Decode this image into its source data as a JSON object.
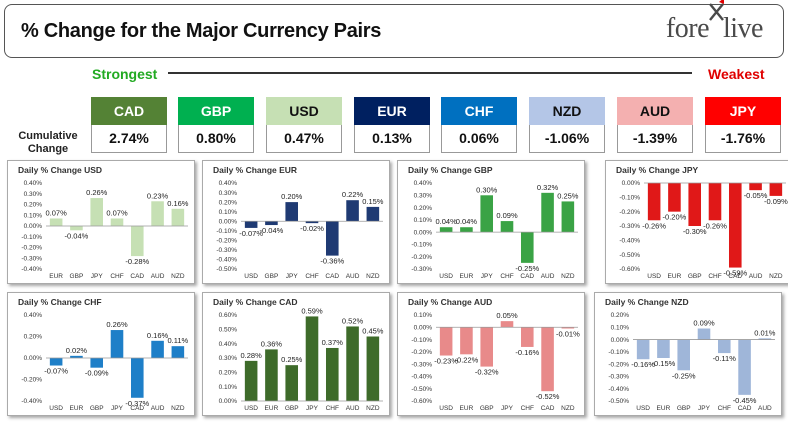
{
  "header": {
    "title": "% Change for the Major Currency Pairs",
    "logo_pre": "fore",
    "logo_post": "live"
  },
  "scale": {
    "strongest": "Strongest",
    "weakest": "Weakest"
  },
  "cumulative_label": "Cumulative Change",
  "summary": [
    {
      "ccy": "CAD",
      "value": "2.74%",
      "color": "#548235",
      "text": "#ffffff"
    },
    {
      "ccy": "GBP",
      "value": "0.80%",
      "color": "#00b050",
      "text": "#ffffff"
    },
    {
      "ccy": "USD",
      "value": "0.47%",
      "color": "#c6e0b4",
      "text": "#111111"
    },
    {
      "ccy": "EUR",
      "value": "0.13%",
      "color": "#002060",
      "text": "#ffffff"
    },
    {
      "ccy": "CHF",
      "value": "0.06%",
      "color": "#0070c0",
      "text": "#ffffff"
    },
    {
      "ccy": "NZD",
      "value": "-1.06%",
      "color": "#b4c6e7",
      "text": "#111111"
    },
    {
      "ccy": "AUD",
      "value": "-1.39%",
      "color": "#f4b0b0",
      "text": "#111111"
    },
    {
      "ccy": "JPY",
      "value": "-1.76%",
      "color": "#ff0000",
      "text": "#ffffff"
    }
  ],
  "chart_data": [
    {
      "type": "bar",
      "title": "Daily % Change USD",
      "color": "#c6e0b4",
      "categories": [
        "EUR",
        "GBP",
        "JPY",
        "CHF",
        "CAD",
        "AUD",
        "NZD"
      ],
      "values": [
        0.07,
        -0.04,
        0.26,
        0.07,
        -0.28,
        0.23,
        0.16
      ],
      "labels": [
        "0.07%",
        "-0.04%",
        "0.26%",
        "0.07%",
        "-0.28%",
        "0.23%",
        "0.16%"
      ],
      "ylim": [
        -0.4,
        0.4
      ],
      "ticks": [
        0.4,
        0.3,
        0.2,
        0.1,
        0.0,
        -0.1,
        -0.2,
        -0.3,
        -0.4
      ],
      "tick_labels": [
        "0.40%",
        "0.30%",
        "0.20%",
        "0.10%",
        "0.00%",
        "-0.10%",
        "-0.20%",
        "-0.30%",
        "-0.40%"
      ]
    },
    {
      "type": "bar",
      "title": "Daily % Change EUR",
      "color": "#1f3a73",
      "categories": [
        "USD",
        "GBP",
        "JPY",
        "CHF",
        "CAD",
        "AUD",
        "NZD"
      ],
      "values": [
        -0.07,
        -0.04,
        0.2,
        -0.02,
        -0.36,
        0.22,
        0.15
      ],
      "labels": [
        "-0.07%",
        "-0.04%",
        "0.20%",
        "-0.02%",
        "-0.36%",
        "0.22%",
        "0.15%"
      ],
      "ylim": [
        -0.5,
        0.4
      ],
      "ticks": [
        0.4,
        0.3,
        0.2,
        0.1,
        0.0,
        -0.1,
        -0.2,
        -0.3,
        -0.4,
        -0.5
      ],
      "tick_labels": [
        "0.40%",
        "0.30%",
        "0.20%",
        "0.10%",
        "0.00%",
        "-0.10%",
        "-0.20%",
        "-0.30%",
        "-0.40%",
        "-0.50%"
      ]
    },
    {
      "type": "bar",
      "title": "Daily % Change GBP",
      "color": "#3aa345",
      "categories": [
        "USD",
        "EUR",
        "JPY",
        "CHF",
        "CAD",
        "AUD",
        "NZD"
      ],
      "values": [
        0.04,
        0.04,
        0.3,
        0.09,
        -0.25,
        0.32,
        0.25
      ],
      "labels": [
        "0.04%",
        "0.04%",
        "0.30%",
        "0.09%",
        "-0.25%",
        "0.32%",
        "0.25%"
      ],
      "ylim": [
        -0.3,
        0.4
      ],
      "ticks": [
        0.4,
        0.3,
        0.2,
        0.1,
        0.0,
        -0.1,
        -0.2,
        -0.3
      ],
      "tick_labels": [
        "0.40%",
        "0.30%",
        "0.20%",
        "0.10%",
        "0.00%",
        "-0.10%",
        "-0.20%",
        "-0.30%"
      ]
    },
    {
      "type": "bar",
      "title": "Daily % Change JPY",
      "color": "#e01818",
      "categories": [
        "USD",
        "EUR",
        "GBP",
        "CHF",
        "CAD",
        "AUD",
        "NZD"
      ],
      "values": [
        -0.26,
        -0.2,
        -0.3,
        -0.26,
        -0.59,
        -0.05,
        -0.09
      ],
      "labels": [
        "-0.26%",
        "-0.20%",
        "-0.30%",
        "-0.26%",
        "-0.59%",
        "-0.05%",
        "-0.09%"
      ],
      "ylim": [
        -0.6,
        0.0
      ],
      "ticks": [
        0.0,
        -0.1,
        -0.2,
        -0.3,
        -0.4,
        -0.5,
        -0.6
      ],
      "tick_labels": [
        "0.00%",
        "-0.10%",
        "-0.20%",
        "-0.30%",
        "-0.40%",
        "-0.50%",
        "-0.60%"
      ]
    },
    {
      "type": "bar",
      "title": "Daily % Change CHF",
      "color": "#1e7fc8",
      "categories": [
        "USD",
        "EUR",
        "GBP",
        "JPY",
        "CAD",
        "AUD",
        "NZD"
      ],
      "values": [
        -0.07,
        0.02,
        -0.09,
        0.26,
        -0.37,
        0.16,
        0.11
      ],
      "labels": [
        "-0.07%",
        "0.02%",
        "-0.09%",
        "0.26%",
        "-0.37%",
        "0.16%",
        "0.11%"
      ],
      "ylim": [
        -0.4,
        0.4
      ],
      "ticks": [
        0.4,
        0.2,
        0.0,
        -0.2,
        -0.4
      ],
      "tick_labels": [
        "0.40%",
        "0.20%",
        "0.00%",
        "-0.20%",
        "-0.40%"
      ]
    },
    {
      "type": "bar",
      "title": "Daily % Change CAD",
      "color": "#3e6b2a",
      "categories": [
        "USD",
        "EUR",
        "GBP",
        "JPY",
        "CHF",
        "AUD",
        "NZD"
      ],
      "values": [
        0.28,
        0.36,
        0.25,
        0.59,
        0.37,
        0.52,
        0.45
      ],
      "labels": [
        "0.28%",
        "0.36%",
        "0.25%",
        "0.59%",
        "0.37%",
        "0.52%",
        "0.45%"
      ],
      "ylim": [
        0.0,
        0.6
      ],
      "ticks": [
        0.6,
        0.5,
        0.4,
        0.3,
        0.2,
        0.1,
        0.0
      ],
      "tick_labels": [
        "0.60%",
        "0.50%",
        "0.40%",
        "0.30%",
        "0.20%",
        "0.10%",
        "0.00%"
      ]
    },
    {
      "type": "bar",
      "title": "Daily % Change AUD",
      "color": "#e88a8a",
      "categories": [
        "USD",
        "EUR",
        "GBP",
        "JPY",
        "CHF",
        "CAD",
        "NZD"
      ],
      "values": [
        -0.23,
        -0.22,
        -0.32,
        0.05,
        -0.16,
        -0.52,
        -0.01
      ],
      "labels": [
        "-0.23%",
        "-0.22%",
        "-0.32%",
        "0.05%",
        "-0.16%",
        "-0.52%",
        "-0.01%"
      ],
      "ylim": [
        -0.6,
        0.1
      ],
      "ticks": [
        0.1,
        0.0,
        -0.1,
        -0.2,
        -0.3,
        -0.4,
        -0.5,
        -0.6
      ],
      "tick_labels": [
        "0.10%",
        "0.00%",
        "-0.10%",
        "-0.20%",
        "-0.30%",
        "-0.40%",
        "-0.50%",
        "-0.60%"
      ]
    },
    {
      "type": "bar",
      "title": "Daily % Change NZD",
      "color": "#9fb6d9",
      "categories": [
        "USD",
        "EUR",
        "GBP",
        "JPY",
        "CHF",
        "CAD",
        "AUD"
      ],
      "values": [
        -0.16,
        -0.15,
        -0.25,
        0.09,
        -0.11,
        -0.45,
        0.01
      ],
      "labels": [
        "-0.16%",
        "-0.15%",
        "-0.25%",
        "0.09%",
        "-0.11%",
        "-0.45%",
        "0.01%"
      ],
      "ylim": [
        -0.5,
        0.2
      ],
      "ticks": [
        0.2,
        0.1,
        0.0,
        -0.1,
        -0.2,
        -0.3,
        -0.4,
        -0.5
      ],
      "tick_labels": [
        "0.20%",
        "0.10%",
        "0.00%",
        "-0.10%",
        "-0.20%",
        "-0.30%",
        "-0.40%",
        "-0.50%"
      ]
    }
  ]
}
